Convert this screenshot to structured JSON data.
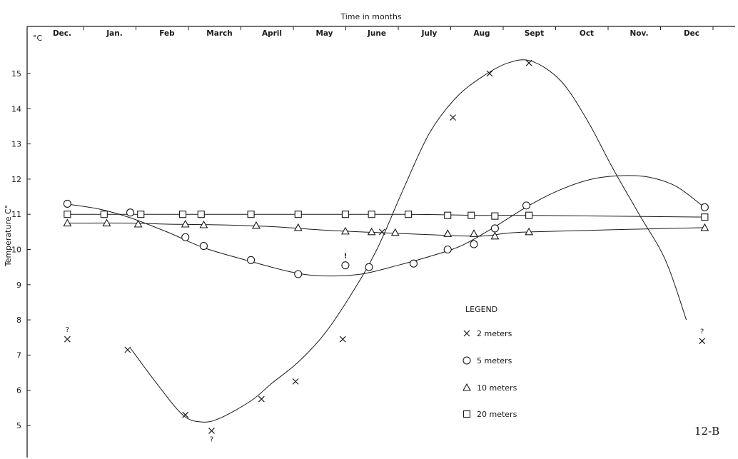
{
  "chart_data": {
    "type": "line",
    "title": "",
    "xlabel": "Time in months",
    "ylabel": "Temperature C°",
    "y_unit_label": "°C",
    "figure_label": "12-B",
    "x_ticks": [
      "Dec.",
      "Jan.",
      "Feb",
      "March",
      "April",
      "May",
      "June",
      "July",
      "Aug",
      "Sept",
      "Oct",
      "Nov.",
      "Dec"
    ],
    "y_ticks": [
      "5",
      "6",
      "7",
      "8",
      "9",
      "10",
      "11",
      "12",
      "13",
      "14",
      "15"
    ],
    "ylim": [
      4.2,
      15.9
    ],
    "xlim": [
      -0.3,
      12.4
    ],
    "grid": false,
    "legend": {
      "title": "LEGEND",
      "position": "right-lower"
    },
    "series": [
      {
        "name": "2 meters",
        "marker": "x",
        "curve": [
          [
            1.3,
            7.2
          ],
          [
            1.8,
            6.2
          ],
          [
            2.3,
            5.3
          ],
          [
            2.65,
            5.1
          ],
          [
            3.0,
            5.2
          ],
          [
            3.6,
            5.7
          ],
          [
            4.0,
            6.2
          ],
          [
            4.5,
            6.8
          ],
          [
            5.0,
            7.6
          ],
          [
            5.5,
            8.7
          ],
          [
            6.0,
            10.0
          ],
          [
            6.5,
            11.7
          ],
          [
            7.0,
            13.3
          ],
          [
            7.5,
            14.3
          ],
          [
            8.0,
            14.9
          ],
          [
            8.5,
            15.3
          ],
          [
            8.95,
            15.35
          ],
          [
            9.5,
            14.8
          ],
          [
            10.0,
            13.7
          ],
          [
            10.5,
            12.3
          ],
          [
            11.0,
            11.0
          ],
          [
            11.5,
            9.7
          ],
          [
            11.9,
            8.0
          ]
        ],
        "points": [
          {
            "x": 0.1,
            "y": 7.45,
            "note": "?"
          },
          {
            "x": 1.25,
            "y": 7.15
          },
          {
            "x": 2.35,
            "y": 5.3
          },
          {
            "x": 2.85,
            "y": 4.85,
            "note": "?"
          },
          {
            "x": 3.8,
            "y": 5.75
          },
          {
            "x": 4.45,
            "y": 6.25
          },
          {
            "x": 5.35,
            "y": 7.45
          },
          {
            "x": 6.1,
            "y": 10.5
          },
          {
            "x": 7.45,
            "y": 13.75
          },
          {
            "x": 8.15,
            "y": 15.0
          },
          {
            "x": 8.9,
            "y": 15.3
          },
          {
            "x": 12.2,
            "y": 7.4,
            "note": "?"
          }
        ]
      },
      {
        "name": "5 meters",
        "marker": "circle",
        "curve": [
          [
            0.05,
            11.3
          ],
          [
            0.7,
            11.15
          ],
          [
            1.3,
            10.9
          ],
          [
            2.0,
            10.5
          ],
          [
            2.7,
            10.05
          ],
          [
            3.5,
            9.7
          ],
          [
            4.4,
            9.35
          ],
          [
            5.0,
            9.25
          ],
          [
            5.7,
            9.3
          ],
          [
            6.4,
            9.55
          ],
          [
            7.0,
            9.8
          ],
          [
            7.6,
            10.1
          ],
          [
            8.2,
            10.6
          ],
          [
            8.9,
            11.25
          ],
          [
            9.5,
            11.7
          ],
          [
            10.1,
            12.0
          ],
          [
            10.7,
            12.1
          ],
          [
            11.2,
            12.05
          ],
          [
            11.7,
            11.8
          ],
          [
            12.2,
            11.25
          ]
        ],
        "points": [
          {
            "x": 0.1,
            "y": 11.3
          },
          {
            "x": 1.3,
            "y": 11.05
          },
          {
            "x": 2.35,
            "y": 10.35
          },
          {
            "x": 2.7,
            "y": 10.1
          },
          {
            "x": 3.6,
            "y": 9.7
          },
          {
            "x": 4.5,
            "y": 9.3
          },
          {
            "x": 5.4,
            "y": 9.55,
            "note": "!"
          },
          {
            "x": 5.85,
            "y": 9.5
          },
          {
            "x": 6.7,
            "y": 9.6
          },
          {
            "x": 7.35,
            "y": 10.0
          },
          {
            "x": 7.85,
            "y": 10.15
          },
          {
            "x": 8.25,
            "y": 10.6
          },
          {
            "x": 8.85,
            "y": 11.25
          },
          {
            "x": 12.25,
            "y": 11.2
          }
        ]
      },
      {
        "name": "10 meters",
        "marker": "triangle",
        "curve": [
          [
            0.1,
            10.75
          ],
          [
            1.3,
            10.75
          ],
          [
            2.0,
            10.72
          ],
          [
            3.0,
            10.7
          ],
          [
            4.0,
            10.65
          ],
          [
            5.0,
            10.55
          ],
          [
            6.0,
            10.48
          ],
          [
            7.0,
            10.42
          ],
          [
            8.0,
            10.38
          ],
          [
            8.9,
            10.5
          ],
          [
            12.25,
            10.62
          ]
        ],
        "points": [
          {
            "x": 0.1,
            "y": 10.75
          },
          {
            "x": 0.85,
            "y": 10.75
          },
          {
            "x": 1.45,
            "y": 10.72
          },
          {
            "x": 2.35,
            "y": 10.72
          },
          {
            "x": 2.7,
            "y": 10.7
          },
          {
            "x": 3.7,
            "y": 10.68
          },
          {
            "x": 4.5,
            "y": 10.62
          },
          {
            "x": 5.4,
            "y": 10.52
          },
          {
            "x": 5.9,
            "y": 10.5
          },
          {
            "x": 6.35,
            "y": 10.48
          },
          {
            "x": 7.35,
            "y": 10.45
          },
          {
            "x": 7.85,
            "y": 10.45
          },
          {
            "x": 8.25,
            "y": 10.38
          },
          {
            "x": 8.9,
            "y": 10.5
          },
          {
            "x": 12.25,
            "y": 10.62
          }
        ]
      },
      {
        "name": "20 meters",
        "marker": "square",
        "curve": [
          [
            0.1,
            11.0
          ],
          [
            1.3,
            11.0
          ],
          [
            3.0,
            11.0
          ],
          [
            5.0,
            11.0
          ],
          [
            6.6,
            11.0
          ],
          [
            8.0,
            10.97
          ],
          [
            8.9,
            10.97
          ],
          [
            12.25,
            10.92
          ]
        ],
        "points": [
          {
            "x": 0.1,
            "y": 11.0
          },
          {
            "x": 0.8,
            "y": 11.0
          },
          {
            "x": 1.5,
            "y": 11.0
          },
          {
            "x": 2.3,
            "y": 11.0
          },
          {
            "x": 2.65,
            "y": 11.0
          },
          {
            "x": 3.6,
            "y": 11.0
          },
          {
            "x": 4.5,
            "y": 11.0
          },
          {
            "x": 5.4,
            "y": 11.0
          },
          {
            "x": 5.9,
            "y": 11.0
          },
          {
            "x": 6.6,
            "y": 11.0
          },
          {
            "x": 7.35,
            "y": 10.97
          },
          {
            "x": 7.8,
            "y": 10.97
          },
          {
            "x": 8.25,
            "y": 10.95
          },
          {
            "x": 8.9,
            "y": 10.97
          },
          {
            "x": 12.25,
            "y": 10.92
          }
        ]
      }
    ]
  }
}
